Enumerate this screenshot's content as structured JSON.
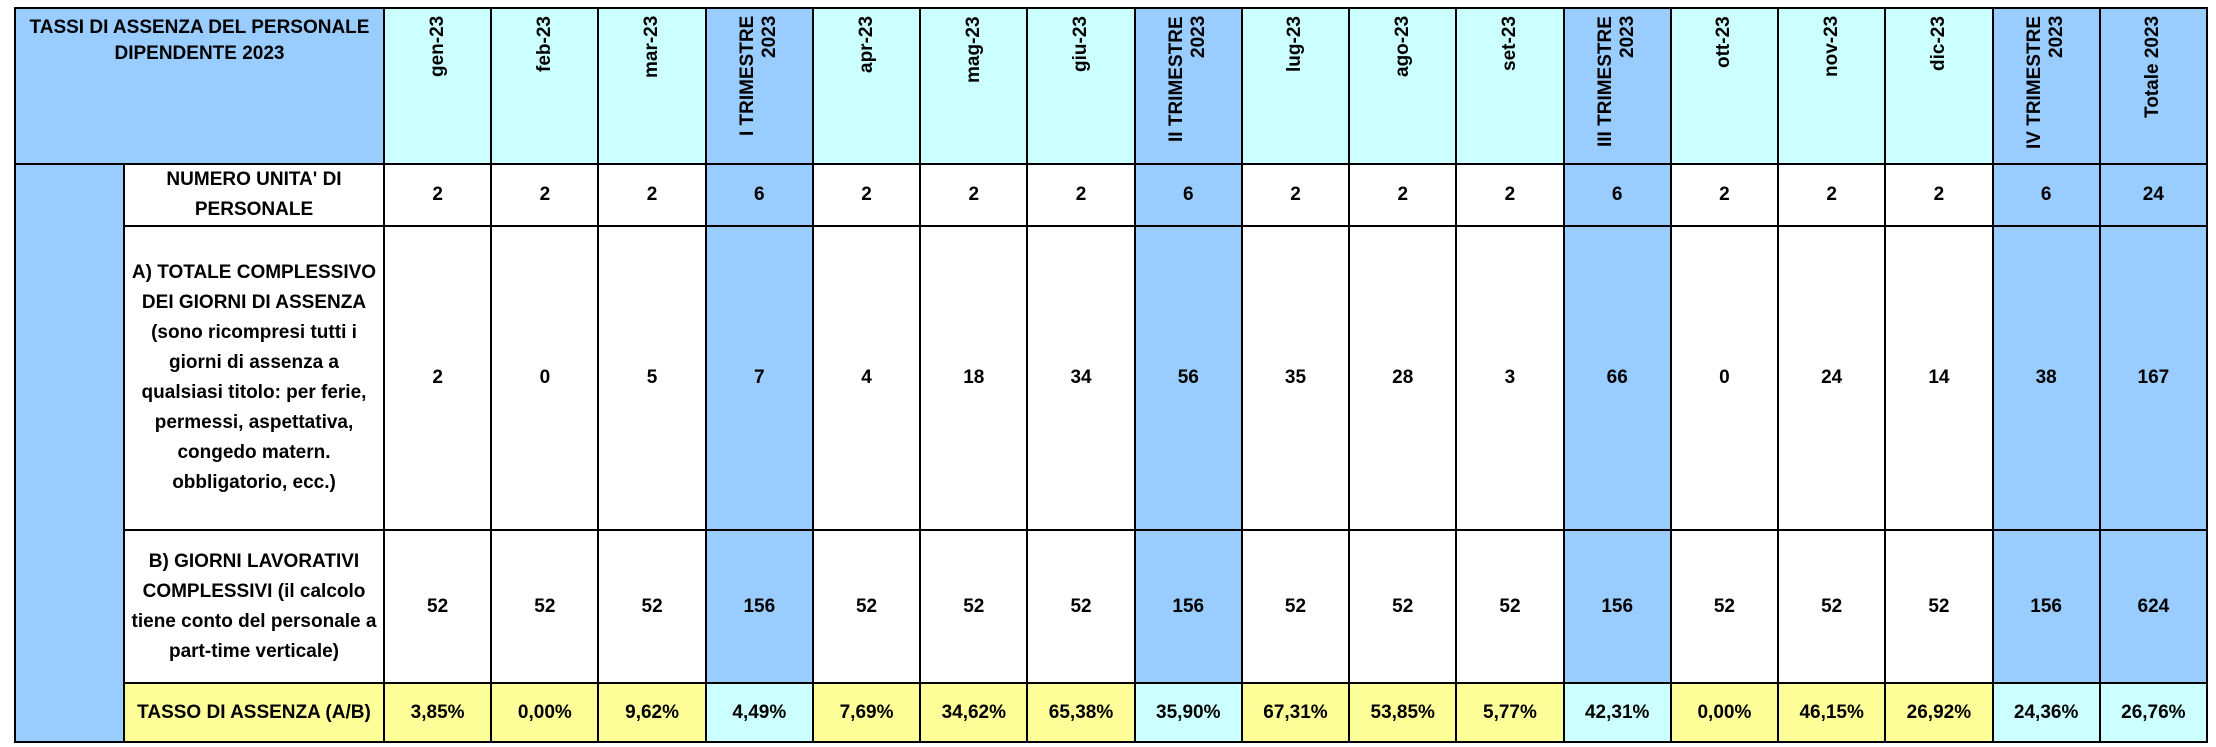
{
  "header": {
    "title": "TASSI DI ASSENZA DEL PERSONALE DIPENDENTE  2023",
    "columns": [
      "gen-23",
      "feb-23",
      "mar-23",
      "I TRIMESTRE 2023",
      "apr-23",
      "mag-23",
      "giu-23",
      "II TRIMESTRE 2023",
      "lug-23",
      "ago-23",
      "set-23",
      "III TRIMESTRE 2023",
      "ott-23",
      "nov-23",
      "dic-23",
      "IV TRIMESTRE 2023",
      "Totale 2023"
    ]
  },
  "table": {
    "rows": [
      {
        "label": "NUMERO UNITA' DI PERSONALE",
        "values": [
          "2",
          "2",
          "2",
          "6",
          "2",
          "2",
          "2",
          "6",
          "2",
          "2",
          "2",
          "6",
          "2",
          "2",
          "2",
          "6",
          "24"
        ]
      },
      {
        "label": "A) TOTALE COMPLESSIVO DEI GIORNI DI ASSENZA (sono ricompresi tutti i giorni di assenza a qualsiasi titolo: per ferie, permessi, aspettativa, congedo matern. obbligatorio, ecc.)",
        "values": [
          "2",
          "0",
          "5",
          "7",
          "4",
          "18",
          "34",
          "56",
          "35",
          "28",
          "3",
          "66",
          "0",
          "24",
          "14",
          "38",
          "167"
        ]
      },
      {
        "label": "B) GIORNI LAVORATIVI COMPLESSIVI (il calcolo tiene conto del personale a part-time verticale)",
        "values": [
          "52",
          "52",
          "52",
          "156",
          "52",
          "52",
          "52",
          "156",
          "52",
          "52",
          "52",
          "156",
          "52",
          "52",
          "52",
          "156",
          "624"
        ]
      },
      {
        "label": "TASSO DI ASSENZA  (A/B)",
        "values": [
          "3,85%",
          "0,00%",
          "9,62%",
          "4,49%",
          "7,69%",
          "34,62%",
          "65,38%",
          "35,90%",
          "67,31%",
          "53,85%",
          "5,77%",
          "42,31%",
          "0,00%",
          "46,15%",
          "26,92%",
          "24,36%",
          "26,76%"
        ]
      }
    ]
  }
}
